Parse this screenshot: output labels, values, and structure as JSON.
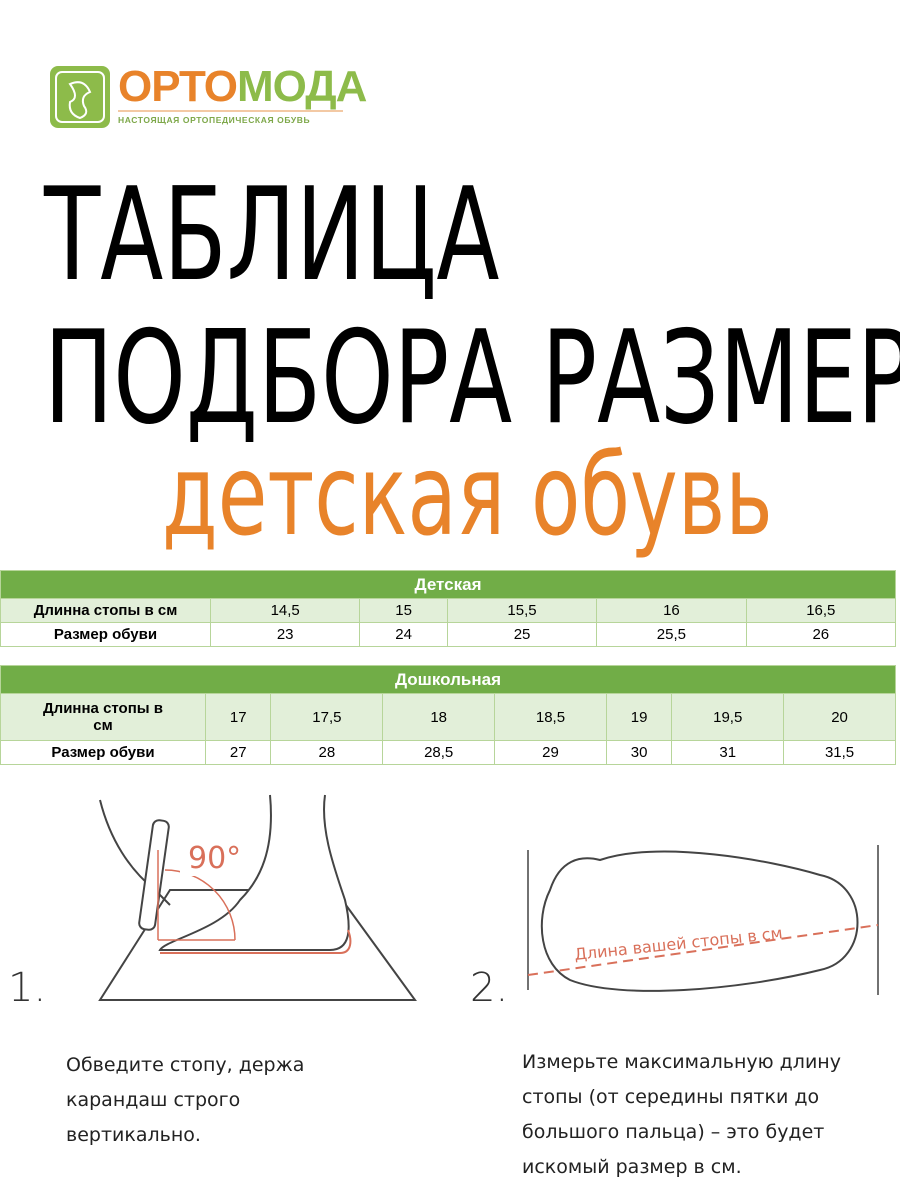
{
  "logo": {
    "brand_part1": "ОРТО",
    "brand_part2": "МОДА",
    "tagline": "НАСТОЯЩАЯ ОРТОПЕДИЧЕСКАЯ ОБУВЬ",
    "colors": {
      "orange": "#e8832a",
      "green": "#8dbb4a"
    }
  },
  "title": {
    "line1": "ТАБЛИЦА",
    "line2": "ПОДБОРА РАЗМЕРА",
    "line3": "детская обувь",
    "accent": "#e8832a"
  },
  "tables": [
    {
      "header": "Детская",
      "rows": [
        {
          "label": "Длинна стопы в см",
          "values": [
            "14,5",
            "15",
            "15,5",
            "16",
            "16,5"
          ]
        },
        {
          "label": "Размер обуви",
          "values": [
            "23",
            "24",
            "25",
            "25,5",
            "26"
          ]
        }
      ]
    },
    {
      "header": "Дошкольная",
      "rows": [
        {
          "label": "Длинна стопы в см",
          "values": [
            "17",
            "17,5",
            "18",
            "18,5",
            "19",
            "19,5",
            "20"
          ]
        },
        {
          "label": "Размер обуви",
          "values": [
            "27",
            "28",
            "28,5",
            "29",
            "30",
            "31",
            "31,5"
          ]
        }
      ]
    }
  ],
  "steps": [
    {
      "number": "1.",
      "angle_label": "90°",
      "caption": "Обведите стопу, держа карандаш строго вертикально."
    },
    {
      "number": "2.",
      "measure_label": "Длина вашей стопы в см",
      "caption": "Измерьте максимальную длину стопы (от середины пятки до большого пальца) – это будет искомый размер в см."
    }
  ]
}
